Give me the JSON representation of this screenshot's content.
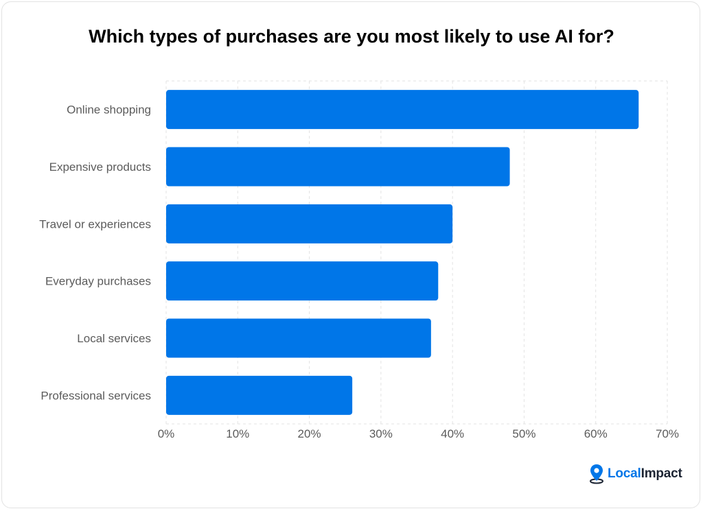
{
  "colors": {
    "bar": "#0076e8",
    "grid": "#e3e3e3",
    "text": "#5b5b5b"
  },
  "brand": {
    "logo_icon": "location-pin-icon",
    "local": "Local",
    "impact": "Impact"
  },
  "chart_data": {
    "type": "bar",
    "orientation": "horizontal",
    "title": "Which types of purchases are you most likely to use AI for?",
    "categories": [
      "Online shopping",
      "Expensive products",
      "Travel or experiences",
      "Everyday purchases",
      "Local services",
      "Professional services"
    ],
    "values": [
      66,
      48,
      40,
      38,
      37,
      26
    ],
    "xlim": [
      0,
      70
    ],
    "xticks": [
      "0%",
      "10%",
      "20%",
      "30%",
      "40%",
      "50%",
      "60%",
      "70%"
    ],
    "grid": true,
    "unit": "%"
  }
}
